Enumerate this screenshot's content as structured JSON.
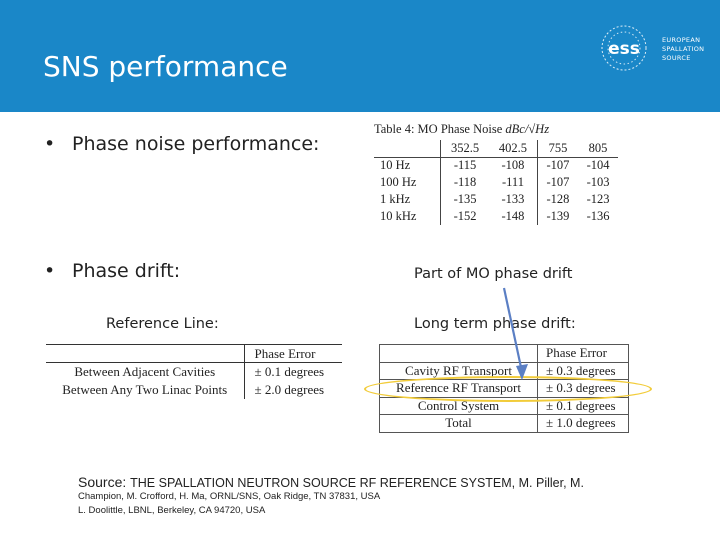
{
  "header": {
    "title": "SNS performance",
    "logo": {
      "mark_text": "ess",
      "lines": [
        "EUROPEAN",
        "SPALLATION",
        "SOURCE"
      ]
    },
    "background_color": "#1a87c8"
  },
  "bullets": {
    "phase_noise": "Phase noise performance:",
    "phase_drift": "Phase drift:",
    "bullet_char": "•"
  },
  "labels": {
    "reference_line": "Reference Line:",
    "part_of_mo": "Part of MO phase drift",
    "long_term": "Long term phase drift:"
  },
  "table4": {
    "caption": "Table 4: MO Phase Noise",
    "unit": "dBc/√Hz",
    "columns": [
      "",
      "352.5",
      "402.5",
      "755",
      "805"
    ],
    "rows": [
      {
        "label": "10 Hz",
        "values": [
          "-115",
          "-108",
          "-107",
          "-104"
        ]
      },
      {
        "label": "100 Hz",
        "values": [
          "-118",
          "-111",
          "-107",
          "-103"
        ]
      },
      {
        "label": "1 kHz",
        "values": [
          "-135",
          "-133",
          "-128",
          "-123"
        ]
      },
      {
        "label": "10 kHz",
        "values": [
          "-152",
          "-148",
          "-139",
          "-136"
        ]
      }
    ]
  },
  "reference_table": {
    "header": [
      "",
      "Phase Error"
    ],
    "rows": [
      {
        "label": "Between Adjacent Cavities",
        "value": "± 0.1 degrees"
      },
      {
        "label": "Between Any Two Linac Points",
        "value": "± 2.0 degrees"
      }
    ]
  },
  "long_term_table": {
    "header": [
      "",
      "Phase Error"
    ],
    "rows": [
      {
        "label": "Cavity RF Transport",
        "value": "± 0.3 degrees"
      },
      {
        "label": "Reference RF Transport",
        "value": "± 0.3 degrees"
      },
      {
        "label": "Control System",
        "value": "± 0.1 degrees"
      },
      {
        "label": "Total",
        "value": "± 1.0 degrees"
      }
    ]
  },
  "source": {
    "prefix": "Source: ",
    "title": "THE SPALLATION NEUTRON SOURCE RF REFERENCE SYSTEM,",
    "authors1": " M. Piller, M.",
    "line2": "Champion, M. Crofford, H. Ma, ORNL/SNS, Oak Ridge, TN 37831, USA",
    "line3": "L. Doolittle, LBNL, Berkeley, CA 94720, USA"
  },
  "colors": {
    "arrow": "#5b7fc4",
    "highlight": "#f2cc3a"
  }
}
